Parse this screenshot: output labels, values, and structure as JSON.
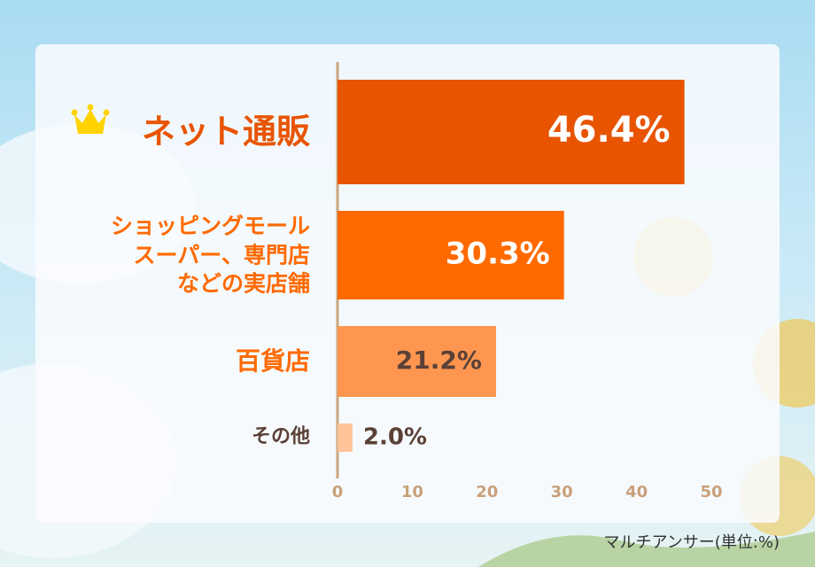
{
  "chart_data": {
    "type": "bar",
    "orientation": "horizontal",
    "categories": [
      "ネット通販",
      "ショッピングモール\nスーパー、専門店\nなどの実店舗",
      "百貨店",
      "その他"
    ],
    "values": [
      46.4,
      30.3,
      21.2,
      2.0
    ],
    "value_labels": [
      "46.4%",
      "30.3%",
      "21.2%",
      "2.0%"
    ],
    "colors": [
      "#e85400",
      "#ff6a00",
      "#ff9650",
      "#ffc39a"
    ],
    "xlim": [
      0,
      50
    ],
    "xticks": [
      0,
      10,
      20,
      30,
      40,
      50
    ],
    "note": "マルチアンサー(単位:%)"
  }
}
